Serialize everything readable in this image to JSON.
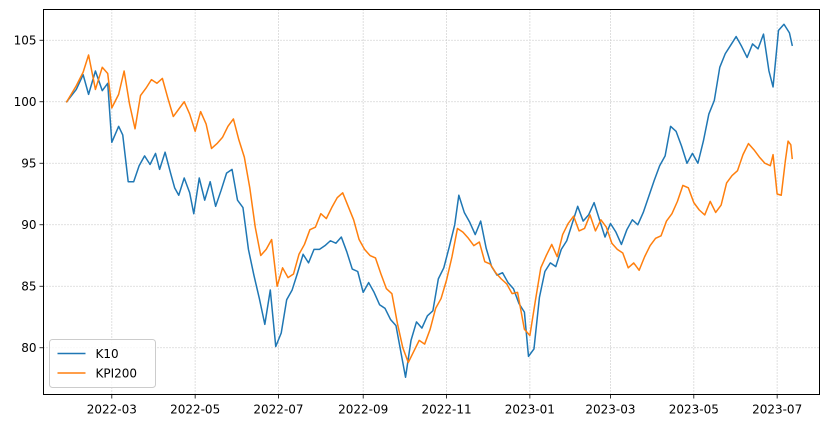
{
  "chart_data": {
    "type": "line",
    "title": "",
    "xlabel": "",
    "ylabel": "",
    "grid": true,
    "grid_style": "dotted",
    "legend_position": "lower-left",
    "x_range": [
      "2022-01-10",
      "2023-08-01"
    ],
    "ylim": [
      76.2,
      107.5
    ],
    "x_ticks": [
      {
        "date": "2022-03-01",
        "label": "2022-03"
      },
      {
        "date": "2022-05-01",
        "label": "2022-05"
      },
      {
        "date": "2022-07-01",
        "label": "2022-07"
      },
      {
        "date": "2022-09-01",
        "label": "2022-09"
      },
      {
        "date": "2022-11-01",
        "label": "2022-11"
      },
      {
        "date": "2023-01-01",
        "label": "2023-01"
      },
      {
        "date": "2023-03-01",
        "label": "2023-03"
      },
      {
        "date": "2023-05-01",
        "label": "2023-05"
      },
      {
        "date": "2023-07-01",
        "label": "2023-07"
      }
    ],
    "y_ticks": [
      {
        "value": 80,
        "label": "80"
      },
      {
        "value": 85,
        "label": "85"
      },
      {
        "value": 90,
        "label": "90"
      },
      {
        "value": 95,
        "label": "95"
      },
      {
        "value": 100,
        "label": "100"
      },
      {
        "value": 105,
        "label": "105"
      }
    ],
    "series": [
      {
        "name": "K10",
        "color": "#1f77b4",
        "points": [
          [
            "2022-01-27",
            100.0
          ],
          [
            "2022-02-03",
            101.0
          ],
          [
            "2022-02-08",
            102.2
          ],
          [
            "2022-02-12",
            100.6
          ],
          [
            "2022-02-17",
            102.5
          ],
          [
            "2022-02-22",
            100.9
          ],
          [
            "2022-02-26",
            101.5
          ],
          [
            "2022-03-01",
            96.7
          ],
          [
            "2022-03-06",
            98.0
          ],
          [
            "2022-03-09",
            97.3
          ],
          [
            "2022-03-13",
            93.5
          ],
          [
            "2022-03-17",
            93.5
          ],
          [
            "2022-03-21",
            94.8
          ],
          [
            "2022-03-25",
            95.6
          ],
          [
            "2022-03-29",
            94.9
          ],
          [
            "2022-04-02",
            95.8
          ],
          [
            "2022-04-05",
            94.5
          ],
          [
            "2022-04-09",
            95.9
          ],
          [
            "2022-04-13",
            94.2
          ],
          [
            "2022-04-16",
            93.0
          ],
          [
            "2022-04-19",
            92.4
          ],
          [
            "2022-04-23",
            93.8
          ],
          [
            "2022-04-27",
            92.6
          ],
          [
            "2022-04-30",
            90.9
          ],
          [
            "2022-05-04",
            93.8
          ],
          [
            "2022-05-08",
            92.0
          ],
          [
            "2022-05-12",
            93.5
          ],
          [
            "2022-05-16",
            91.5
          ],
          [
            "2022-05-20",
            92.8
          ],
          [
            "2022-05-24",
            94.2
          ],
          [
            "2022-05-28",
            94.5
          ],
          [
            "2022-06-01",
            92.0
          ],
          [
            "2022-06-05",
            91.4
          ],
          [
            "2022-06-09",
            88.0
          ],
          [
            "2022-06-13",
            85.9
          ],
          [
            "2022-06-17",
            84.0
          ],
          [
            "2022-06-21",
            81.9
          ],
          [
            "2022-06-25",
            84.7
          ],
          [
            "2022-06-29",
            80.1
          ],
          [
            "2022-07-03",
            81.2
          ],
          [
            "2022-07-07",
            83.9
          ],
          [
            "2022-07-11",
            84.7
          ],
          [
            "2022-07-15",
            86.1
          ],
          [
            "2022-07-19",
            87.6
          ],
          [
            "2022-07-23",
            86.9
          ],
          [
            "2022-07-27",
            88.0
          ],
          [
            "2022-07-31",
            88.0
          ],
          [
            "2022-08-04",
            88.3
          ],
          [
            "2022-08-08",
            88.7
          ],
          [
            "2022-08-12",
            88.5
          ],
          [
            "2022-08-16",
            89.0
          ],
          [
            "2022-08-20",
            87.8
          ],
          [
            "2022-08-24",
            86.4
          ],
          [
            "2022-08-28",
            86.2
          ],
          [
            "2022-09-01",
            84.5
          ],
          [
            "2022-09-05",
            85.3
          ],
          [
            "2022-09-09",
            84.5
          ],
          [
            "2022-09-13",
            83.5
          ],
          [
            "2022-09-17",
            83.2
          ],
          [
            "2022-09-21",
            82.3
          ],
          [
            "2022-09-25",
            81.8
          ],
          [
            "2022-09-29",
            79.4
          ],
          [
            "2022-10-02",
            77.6
          ],
          [
            "2022-10-06",
            80.6
          ],
          [
            "2022-10-10",
            82.1
          ],
          [
            "2022-10-14",
            81.6
          ],
          [
            "2022-10-18",
            82.6
          ],
          [
            "2022-10-22",
            83.0
          ],
          [
            "2022-10-26",
            85.6
          ],
          [
            "2022-10-30",
            86.5
          ],
          [
            "2022-11-03",
            88.2
          ],
          [
            "2022-11-07",
            90.0
          ],
          [
            "2022-11-10",
            92.4
          ],
          [
            "2022-11-14",
            91.0
          ],
          [
            "2022-11-18",
            90.2
          ],
          [
            "2022-11-22",
            89.2
          ],
          [
            "2022-11-26",
            90.3
          ],
          [
            "2022-11-30",
            88.1
          ],
          [
            "2022-12-04",
            86.6
          ],
          [
            "2022-12-08",
            85.9
          ],
          [
            "2022-12-12",
            86.1
          ],
          [
            "2022-12-16",
            85.3
          ],
          [
            "2022-12-20",
            84.8
          ],
          [
            "2022-12-24",
            83.6
          ],
          [
            "2022-12-28",
            82.9
          ],
          [
            "2022-12-31",
            79.3
          ],
          [
            "2023-01-04",
            79.9
          ],
          [
            "2023-01-08",
            84.1
          ],
          [
            "2023-01-12",
            86.2
          ],
          [
            "2023-01-16",
            86.9
          ],
          [
            "2023-01-20",
            86.6
          ],
          [
            "2023-01-24",
            88.0
          ],
          [
            "2023-01-28",
            88.7
          ],
          [
            "2023-02-01",
            90.1
          ],
          [
            "2023-02-05",
            91.5
          ],
          [
            "2023-02-09",
            90.3
          ],
          [
            "2023-02-13",
            90.8
          ],
          [
            "2023-02-17",
            91.8
          ],
          [
            "2023-02-21",
            90.4
          ],
          [
            "2023-02-25",
            89.0
          ],
          [
            "2023-03-01",
            90.1
          ],
          [
            "2023-03-05",
            89.4
          ],
          [
            "2023-03-09",
            88.4
          ],
          [
            "2023-03-13",
            89.6
          ],
          [
            "2023-03-17",
            90.4
          ],
          [
            "2023-03-21",
            90.0
          ],
          [
            "2023-03-25",
            91.0
          ],
          [
            "2023-03-29",
            92.3
          ],
          [
            "2023-04-02",
            93.6
          ],
          [
            "2023-04-06",
            94.8
          ],
          [
            "2023-04-10",
            95.6
          ],
          [
            "2023-04-14",
            98.0
          ],
          [
            "2023-04-18",
            97.6
          ],
          [
            "2023-04-22",
            96.4
          ],
          [
            "2023-04-26",
            95.0
          ],
          [
            "2023-04-30",
            95.8
          ],
          [
            "2023-05-04",
            95.0
          ],
          [
            "2023-05-08",
            96.8
          ],
          [
            "2023-05-12",
            99.0
          ],
          [
            "2023-05-16",
            100.1
          ],
          [
            "2023-05-20",
            102.8
          ],
          [
            "2023-05-24",
            103.9
          ],
          [
            "2023-05-28",
            104.6
          ],
          [
            "2023-06-01",
            105.3
          ],
          [
            "2023-06-05",
            104.5
          ],
          [
            "2023-06-09",
            103.6
          ],
          [
            "2023-06-13",
            104.7
          ],
          [
            "2023-06-17",
            104.3
          ],
          [
            "2023-06-21",
            105.5
          ],
          [
            "2023-06-25",
            102.5
          ],
          [
            "2023-06-28",
            101.2
          ],
          [
            "2023-07-02",
            105.8
          ],
          [
            "2023-07-06",
            106.3
          ],
          [
            "2023-07-10",
            105.6
          ],
          [
            "2023-07-12",
            104.6
          ]
        ]
      },
      {
        "name": "KPI200",
        "color": "#ff7f0e",
        "points": [
          [
            "2022-01-27",
            100.0
          ],
          [
            "2022-02-03",
            101.3
          ],
          [
            "2022-02-08",
            102.4
          ],
          [
            "2022-02-12",
            103.8
          ],
          [
            "2022-02-17",
            101.0
          ],
          [
            "2022-02-22",
            102.8
          ],
          [
            "2022-02-26",
            102.3
          ],
          [
            "2022-03-01",
            99.5
          ],
          [
            "2022-03-06",
            100.6
          ],
          [
            "2022-03-10",
            102.5
          ],
          [
            "2022-03-14",
            99.8
          ],
          [
            "2022-03-18",
            97.8
          ],
          [
            "2022-03-22",
            100.5
          ],
          [
            "2022-03-26",
            101.1
          ],
          [
            "2022-03-30",
            101.8
          ],
          [
            "2022-04-03",
            101.5
          ],
          [
            "2022-04-07",
            101.9
          ],
          [
            "2022-04-11",
            100.3
          ],
          [
            "2022-04-15",
            98.8
          ],
          [
            "2022-04-19",
            99.4
          ],
          [
            "2022-04-23",
            100.0
          ],
          [
            "2022-04-27",
            99.0
          ],
          [
            "2022-05-01",
            97.6
          ],
          [
            "2022-05-05",
            99.2
          ],
          [
            "2022-05-09",
            98.2
          ],
          [
            "2022-05-13",
            96.2
          ],
          [
            "2022-05-17",
            96.6
          ],
          [
            "2022-05-21",
            97.1
          ],
          [
            "2022-05-25",
            98.0
          ],
          [
            "2022-05-29",
            98.6
          ],
          [
            "2022-06-02",
            96.9
          ],
          [
            "2022-06-06",
            95.5
          ],
          [
            "2022-06-10",
            93.0
          ],
          [
            "2022-06-14",
            89.8
          ],
          [
            "2022-06-18",
            87.5
          ],
          [
            "2022-06-22",
            88.0
          ],
          [
            "2022-06-26",
            88.8
          ],
          [
            "2022-06-30",
            85.0
          ],
          [
            "2022-07-04",
            86.5
          ],
          [
            "2022-07-08",
            85.7
          ],
          [
            "2022-07-12",
            86.0
          ],
          [
            "2022-07-16",
            87.6
          ],
          [
            "2022-07-20",
            88.4
          ],
          [
            "2022-07-24",
            89.6
          ],
          [
            "2022-07-28",
            89.8
          ],
          [
            "2022-08-01",
            90.9
          ],
          [
            "2022-08-05",
            90.5
          ],
          [
            "2022-08-09",
            91.4
          ],
          [
            "2022-08-13",
            92.2
          ],
          [
            "2022-08-17",
            92.6
          ],
          [
            "2022-08-21",
            91.5
          ],
          [
            "2022-08-25",
            90.4
          ],
          [
            "2022-08-29",
            88.8
          ],
          [
            "2022-09-02",
            88.0
          ],
          [
            "2022-09-06",
            87.5
          ],
          [
            "2022-09-10",
            87.3
          ],
          [
            "2022-09-14",
            86.0
          ],
          [
            "2022-09-18",
            84.8
          ],
          [
            "2022-09-22",
            84.4
          ],
          [
            "2022-09-26",
            82.0
          ],
          [
            "2022-09-30",
            80.0
          ],
          [
            "2022-10-04",
            78.8
          ],
          [
            "2022-10-08",
            79.7
          ],
          [
            "2022-10-12",
            80.6
          ],
          [
            "2022-10-16",
            80.3
          ],
          [
            "2022-10-20",
            81.5
          ],
          [
            "2022-10-24",
            83.2
          ],
          [
            "2022-10-28",
            84.0
          ],
          [
            "2022-11-01",
            85.5
          ],
          [
            "2022-11-05",
            87.4
          ],
          [
            "2022-11-09",
            89.7
          ],
          [
            "2022-11-13",
            89.4
          ],
          [
            "2022-11-17",
            88.9
          ],
          [
            "2022-11-21",
            88.3
          ],
          [
            "2022-11-25",
            88.6
          ],
          [
            "2022-11-29",
            87.0
          ],
          [
            "2022-12-03",
            86.8
          ],
          [
            "2022-12-07",
            86.1
          ],
          [
            "2022-12-11",
            85.6
          ],
          [
            "2022-12-15",
            85.2
          ],
          [
            "2022-12-19",
            84.4
          ],
          [
            "2022-12-23",
            84.5
          ],
          [
            "2022-12-28",
            81.5
          ],
          [
            "2023-01-01",
            81.0
          ],
          [
            "2023-01-05",
            83.8
          ],
          [
            "2023-01-09",
            86.5
          ],
          [
            "2023-01-13",
            87.5
          ],
          [
            "2023-01-17",
            88.4
          ],
          [
            "2023-01-21",
            87.4
          ],
          [
            "2023-01-25",
            89.2
          ],
          [
            "2023-01-29",
            90.1
          ],
          [
            "2023-02-02",
            90.7
          ],
          [
            "2023-02-06",
            89.5
          ],
          [
            "2023-02-10",
            89.7
          ],
          [
            "2023-02-14",
            90.8
          ],
          [
            "2023-02-18",
            89.5
          ],
          [
            "2023-02-22",
            90.4
          ],
          [
            "2023-02-26",
            89.8
          ],
          [
            "2023-03-02",
            88.5
          ],
          [
            "2023-03-06",
            88.0
          ],
          [
            "2023-03-10",
            87.7
          ],
          [
            "2023-03-14",
            86.5
          ],
          [
            "2023-03-18",
            86.9
          ],
          [
            "2023-03-22",
            86.3
          ],
          [
            "2023-03-26",
            87.4
          ],
          [
            "2023-03-30",
            88.3
          ],
          [
            "2023-04-03",
            88.9
          ],
          [
            "2023-04-07",
            89.1
          ],
          [
            "2023-04-11",
            90.3
          ],
          [
            "2023-04-15",
            90.9
          ],
          [
            "2023-04-19",
            91.9
          ],
          [
            "2023-04-23",
            93.2
          ],
          [
            "2023-04-27",
            93.0
          ],
          [
            "2023-05-01",
            91.8
          ],
          [
            "2023-05-05",
            91.2
          ],
          [
            "2023-05-09",
            90.8
          ],
          [
            "2023-05-13",
            91.9
          ],
          [
            "2023-05-17",
            91.0
          ],
          [
            "2023-05-21",
            91.6
          ],
          [
            "2023-05-25",
            93.4
          ],
          [
            "2023-05-29",
            94.0
          ],
          [
            "2023-06-02",
            94.4
          ],
          [
            "2023-06-06",
            95.7
          ],
          [
            "2023-06-10",
            96.6
          ],
          [
            "2023-06-14",
            96.1
          ],
          [
            "2023-06-18",
            95.5
          ],
          [
            "2023-06-22",
            95.0
          ],
          [
            "2023-06-26",
            94.8
          ],
          [
            "2023-06-28",
            95.7
          ],
          [
            "2023-07-01",
            92.5
          ],
          [
            "2023-07-04",
            92.4
          ],
          [
            "2023-07-07",
            95.2
          ],
          [
            "2023-07-09",
            96.8
          ],
          [
            "2023-07-11",
            96.5
          ],
          [
            "2023-07-12",
            95.4
          ]
        ]
      }
    ]
  }
}
